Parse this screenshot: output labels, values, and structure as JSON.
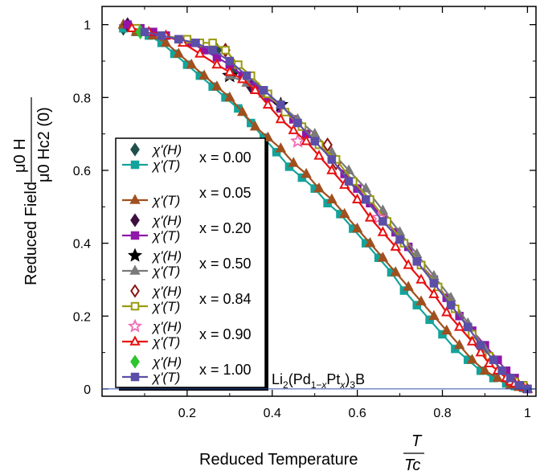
{
  "chart_data": {
    "type": "line",
    "xlabel": "Reduced Temperature",
    "xlabel_fraction": {
      "numerator": "T",
      "denominator": "Tc"
    },
    "ylabel": "Reduced Field",
    "ylabel_fraction": {
      "numerator": "μ0 H",
      "denominator": "μ0 Hc2 (0)"
    },
    "xlim": [
      0.0,
      1.02
    ],
    "ylim": [
      -0.02,
      1.05
    ],
    "x_ticks": [
      0.2,
      0.4,
      0.6,
      0.8,
      1
    ],
    "y_ticks": [
      0,
      0.2,
      0.4,
      0.6,
      0.8,
      1
    ],
    "x_tick_labels": [
      "0.2",
      "0.4",
      "0.6",
      "0.8",
      "1"
    ],
    "y_tick_labels": [
      "0",
      "0.2",
      "0.4",
      "0.6",
      "0.8",
      "1"
    ],
    "grid": false,
    "legend_position": "bottom-left",
    "annotation": "Li2(Pd1−xPtx)3B",
    "annotation_parts": {
      "a": "Li",
      "b": "2",
      "c": "(Pd",
      "d": "1−",
      "e": "x",
      "f": "Pt",
      "g": "x",
      "h": ")",
      "i": "3",
      "j": "B"
    },
    "legend_groups": [
      {
        "x_label": "x = 0.00",
        "h_label": "χ'(H)",
        "t_label": "χ'(T)"
      },
      {
        "x_label": "x = 0.05",
        "h_label": "",
        "t_label": "χ'(T)"
      },
      {
        "x_label": "x = 0.20",
        "h_label": "χ'(H)",
        "t_label": "χ'(T)"
      },
      {
        "x_label": "x = 0.50",
        "h_label": "χ'(H)",
        "t_label": "χ'(T)"
      },
      {
        "x_label": "x = 0.84",
        "h_label": "χ'(H)",
        "t_label": "χ'(T)"
      },
      {
        "x_label": "x = 0.90",
        "h_label": "χ'(H)",
        "t_label": "χ'(T)"
      },
      {
        "x_label": "x = 1.00",
        "h_label": "χ'(H)",
        "t_label": "χ'(T)"
      }
    ],
    "series": [
      {
        "composition": "x = 0.00",
        "kind": "H",
        "color": "#1f4f4a",
        "marker": "diamond-filled",
        "x": [
          0.05,
          0.27,
          0.31
        ],
        "y": [
          0.99,
          0.93,
          0.87
        ]
      },
      {
        "composition": "x = 0.00",
        "kind": "T",
        "color": "#14a39a",
        "marker": "square-filled",
        "x": [
          0.05,
          0.08,
          0.11,
          0.14,
          0.17,
          0.2,
          0.23,
          0.26,
          0.29,
          0.32,
          0.35,
          0.38,
          0.41,
          0.44,
          0.47,
          0.5,
          0.53,
          0.56,
          0.59,
          0.62,
          0.65,
          0.68,
          0.71,
          0.74,
          0.77,
          0.8,
          0.83,
          0.86,
          0.89,
          0.92,
          0.95,
          0.97,
          0.99,
          1.0
        ],
        "y": [
          0.99,
          0.98,
          0.97,
          0.95,
          0.92,
          0.89,
          0.86,
          0.83,
          0.8,
          0.77,
          0.73,
          0.69,
          0.65,
          0.61,
          0.58,
          0.55,
          0.51,
          0.48,
          0.44,
          0.4,
          0.36,
          0.32,
          0.27,
          0.23,
          0.19,
          0.15,
          0.11,
          0.08,
          0.05,
          0.03,
          0.015,
          0.008,
          0.003,
          0.0
        ]
      },
      {
        "composition": "x = 0.05",
        "kind": "T",
        "color": "#a0501e",
        "marker": "triangle-filled",
        "x": [
          0.05,
          0.08,
          0.12,
          0.15,
          0.18,
          0.21,
          0.24,
          0.27,
          0.3,
          0.33,
          0.36,
          0.39,
          0.42,
          0.45,
          0.48,
          0.51,
          0.54,
          0.57,
          0.6,
          0.63,
          0.66,
          0.69,
          0.72,
          0.75,
          0.78,
          0.81,
          0.84,
          0.87,
          0.9,
          0.93,
          0.96,
          0.98,
          1.0
        ],
        "y": [
          1.0,
          0.98,
          0.97,
          0.95,
          0.92,
          0.89,
          0.86,
          0.83,
          0.8,
          0.76,
          0.72,
          0.69,
          0.66,
          0.62,
          0.59,
          0.55,
          0.52,
          0.48,
          0.44,
          0.4,
          0.36,
          0.32,
          0.28,
          0.24,
          0.2,
          0.16,
          0.12,
          0.08,
          0.05,
          0.03,
          0.01,
          0.005,
          0.0
        ]
      },
      {
        "composition": "x = 0.20",
        "kind": "H",
        "color": "#3d0f3f",
        "marker": "diamond-filled",
        "x": [
          0.06,
          0.35
        ],
        "y": [
          1.0,
          0.83
        ]
      },
      {
        "composition": "x = 0.20",
        "kind": "T",
        "color": "#8f16a8",
        "marker": "square-filled",
        "x": [
          0.06,
          0.09,
          0.12,
          0.15,
          0.18,
          0.21,
          0.24,
          0.27,
          0.3,
          0.33,
          0.36,
          0.39,
          0.42,
          0.45,
          0.48,
          0.51,
          0.54,
          0.57,
          0.6,
          0.63,
          0.66,
          0.69,
          0.72,
          0.75,
          0.78,
          0.81,
          0.84,
          0.87,
          0.9,
          0.93,
          0.95,
          0.97,
          0.99,
          1.0
        ],
        "y": [
          1.0,
          0.99,
          0.98,
          0.97,
          0.96,
          0.95,
          0.93,
          0.91,
          0.89,
          0.86,
          0.83,
          0.8,
          0.77,
          0.74,
          0.7,
          0.67,
          0.63,
          0.59,
          0.55,
          0.51,
          0.47,
          0.43,
          0.39,
          0.34,
          0.3,
          0.25,
          0.2,
          0.16,
          0.12,
          0.08,
          0.05,
          0.03,
          0.01,
          0.0
        ]
      },
      {
        "composition": "x = 0.50",
        "kind": "H",
        "color": "#000000",
        "marker": "star-filled",
        "x": [
          0.3,
          0.42
        ],
        "y": [
          0.86,
          0.78
        ]
      },
      {
        "composition": "x = 0.50",
        "kind": "T",
        "color": "#7a7a7a",
        "marker": "triangle-filled",
        "x": [
          0.3,
          0.34,
          0.38,
          0.42,
          0.46,
          0.5,
          0.54,
          0.58,
          0.62,
          0.66,
          0.7,
          0.74,
          0.78,
          0.82,
          0.86,
          0.9,
          0.94,
          0.97,
          1.0
        ],
        "y": [
          0.86,
          0.84,
          0.81,
          0.78,
          0.74,
          0.7,
          0.65,
          0.6,
          0.55,
          0.49,
          0.43,
          0.37,
          0.31,
          0.25,
          0.18,
          0.11,
          0.05,
          0.02,
          0.0
        ]
      },
      {
        "composition": "x = 0.84",
        "kind": "H",
        "color": "#8b1010",
        "marker": "diamond-open",
        "x": [
          0.29,
          0.53,
          0.55
        ],
        "y": [
          0.93,
          0.67,
          0.62
        ]
      },
      {
        "composition": "x = 0.84",
        "kind": "T",
        "color": "#9a9a10",
        "marker": "square-open",
        "x": [
          0.08,
          0.14,
          0.2,
          0.23,
          0.26,
          0.29,
          0.32,
          0.35,
          0.39,
          0.43,
          0.47,
          0.51,
          0.55,
          0.59,
          0.63,
          0.67,
          0.71,
          0.75,
          0.79,
          0.83,
          0.87,
          0.91,
          0.94,
          0.97,
          0.99
        ],
        "y": [
          0.99,
          0.97,
          0.96,
          0.95,
          0.95,
          0.93,
          0.89,
          0.86,
          0.81,
          0.76,
          0.72,
          0.67,
          0.63,
          0.57,
          0.52,
          0.46,
          0.4,
          0.34,
          0.28,
          0.22,
          0.15,
          0.09,
          0.05,
          0.02,
          0.01
        ]
      },
      {
        "composition": "x = 0.90",
        "kind": "H",
        "color": "#f06ab4",
        "marker": "star-open",
        "x": [
          0.46,
          0.65
        ],
        "y": [
          0.68,
          0.47
        ]
      },
      {
        "composition": "x = 0.90",
        "kind": "T",
        "color": "#e81010",
        "marker": "triangle-open",
        "x": [
          0.07,
          0.11,
          0.15,
          0.19,
          0.23,
          0.27,
          0.3,
          0.33,
          0.36,
          0.39,
          0.42,
          0.45,
          0.48,
          0.51,
          0.54,
          0.57,
          0.6,
          0.63,
          0.66,
          0.69,
          0.72,
          0.75,
          0.78,
          0.81,
          0.84,
          0.87,
          0.89,
          0.91,
          0.93,
          0.95,
          0.96,
          0.97,
          0.98,
          0.99,
          1.0
        ],
        "y": [
          0.99,
          0.98,
          0.97,
          0.95,
          0.92,
          0.89,
          0.87,
          0.85,
          0.82,
          0.78,
          0.74,
          0.71,
          0.68,
          0.64,
          0.6,
          0.56,
          0.52,
          0.47,
          0.43,
          0.39,
          0.34,
          0.3,
          0.26,
          0.21,
          0.17,
          0.13,
          0.1,
          0.07,
          0.05,
          0.03,
          0.02,
          0.015,
          0.01,
          0.005,
          0.0
        ]
      },
      {
        "composition": "x = 1.00",
        "kind": "H",
        "color": "#2ec42e",
        "marker": "diamond-filled",
        "x": [
          0.09
        ],
        "y": [
          0.98
        ]
      },
      {
        "composition": "x = 1.00",
        "kind": "T",
        "color": "#5b4fa8",
        "marker": "square-filled",
        "x": [
          0.1,
          0.14,
          0.18,
          0.22,
          0.26,
          0.3,
          0.34,
          0.38,
          0.42,
          0.46,
          0.5,
          0.54,
          0.58,
          0.62,
          0.66,
          0.7,
          0.74,
          0.78,
          0.82,
          0.86,
          0.89,
          0.92,
          0.94,
          0.96,
          0.98,
          1.0
        ],
        "y": [
          0.98,
          0.97,
          0.96,
          0.95,
          0.93,
          0.9,
          0.86,
          0.82,
          0.78,
          0.73,
          0.68,
          0.63,
          0.57,
          0.52,
          0.46,
          0.41,
          0.35,
          0.29,
          0.23,
          0.17,
          0.12,
          0.08,
          0.05,
          0.03,
          0.01,
          0.0
        ]
      }
    ]
  }
}
